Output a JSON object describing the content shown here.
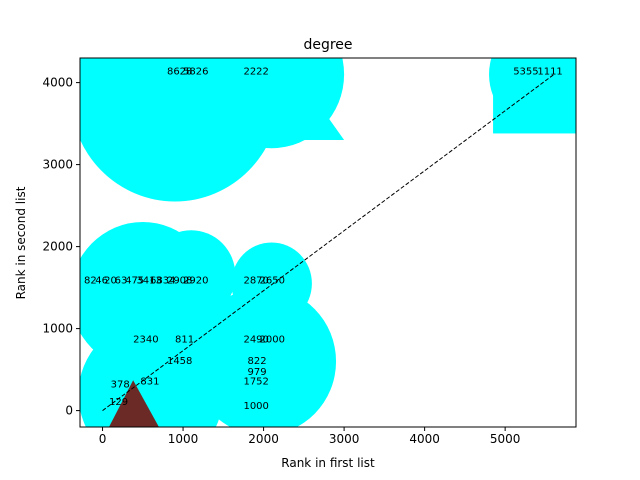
{
  "chart_data": {
    "type": "scatter",
    "title": "degree",
    "xlabel": "Rank in first list",
    "ylabel": "Rank in second list",
    "xlim": [
      -280,
      5880
    ],
    "ylim": [
      -200,
      4300
    ],
    "xticks": [
      0,
      1000,
      2000,
      3000,
      4000,
      5000
    ],
    "yticks": [
      0,
      1000,
      2000,
      3000,
      4000
    ],
    "grid": false,
    "colors": {
      "blob": "#00ffff",
      "triangle": "#6b2a25",
      "line": "#000000",
      "text": "#000000"
    },
    "blobs": [
      {
        "shape": "circle",
        "cx": 900,
        "cy": 3850,
        "r": 1300
      },
      {
        "shape": "circle",
        "cx": 2100,
        "cy": 4100,
        "r": 900
      },
      {
        "shape": "circle",
        "cx": 500,
        "cy": 1400,
        "r": 900
      },
      {
        "shape": "circle",
        "cx": 2100,
        "cy": 1550,
        "r": 500
      },
      {
        "shape": "circle",
        "cx": 1100,
        "cy": 1650,
        "r": 550
      },
      {
        "shape": "circle",
        "cx": 2000,
        "cy": 600,
        "r": 900
      },
      {
        "shape": "circle",
        "cx": 600,
        "cy": 200,
        "r": 900
      },
      {
        "shape": "circle",
        "cx": 5500,
        "cy": 4100,
        "r": 700
      }
    ],
    "triangle": {
      "points": [
        [
          80,
          -200
        ],
        [
          380,
          370
        ],
        [
          700,
          -200
        ]
      ]
    },
    "reference_line": {
      "x": [
        0,
        5620
      ],
      "y": [
        0,
        4110
      ]
    },
    "labels": [
      {
        "text": "8628",
        "x": 800,
        "y": 4150
      },
      {
        "text": "5826",
        "x": 1000,
        "y": 4150
      },
      {
        "text": "2222",
        "x": 1750,
        "y": 4150
      },
      {
        "text": "5355",
        "x": 5100,
        "y": 4150
      },
      {
        "text": "1111",
        "x": 5400,
        "y": 4150
      },
      {
        "text": "82",
        "x": -230,
        "y": 1600
      },
      {
        "text": "46",
        "x": -90,
        "y": 1600
      },
      {
        "text": "20",
        "x": 20,
        "y": 1600
      },
      {
        "text": "63",
        "x": 150,
        "y": 1600
      },
      {
        "text": "475",
        "x": 280,
        "y": 1600
      },
      {
        "text": "3413",
        "x": 420,
        "y": 1600
      },
      {
        "text": "6834",
        "x": 590,
        "y": 1600
      },
      {
        "text": "2908",
        "x": 800,
        "y": 1600
      },
      {
        "text": "2920",
        "x": 1000,
        "y": 1600
      },
      {
        "text": "2870",
        "x": 1750,
        "y": 1600
      },
      {
        "text": "2650",
        "x": 1950,
        "y": 1600
      },
      {
        "text": "2340",
        "x": 380,
        "y": 880
      },
      {
        "text": "811",
        "x": 900,
        "y": 880
      },
      {
        "text": "2490",
        "x": 1750,
        "y": 880
      },
      {
        "text": "2000",
        "x": 1950,
        "y": 880
      },
      {
        "text": "1458",
        "x": 800,
        "y": 620
      },
      {
        "text": "822",
        "x": 1800,
        "y": 620
      },
      {
        "text": "979",
        "x": 1800,
        "y": 480
      },
      {
        "text": "378",
        "x": 100,
        "y": 330
      },
      {
        "text": "831",
        "x": 470,
        "y": 370
      },
      {
        "text": "1752",
        "x": 1750,
        "y": 370
      },
      {
        "text": "129",
        "x": 80,
        "y": 120
      },
      {
        "text": "1000",
        "x": 1750,
        "y": 70
      }
    ]
  }
}
